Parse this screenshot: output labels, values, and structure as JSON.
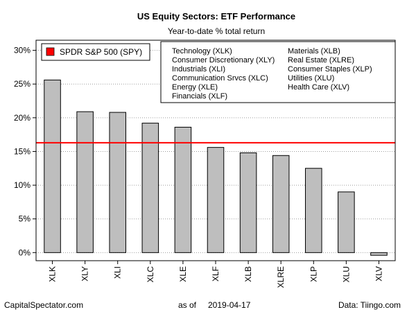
{
  "chart_data": {
    "type": "bar",
    "title": "US Equity Sectors: ETF Performance",
    "subtitle": "Year-to-date % total return",
    "categories": [
      "XLK",
      "XLY",
      "XLI",
      "XLC",
      "XLE",
      "XLF",
      "XLB",
      "XLRE",
      "XLP",
      "XLU",
      "XLV"
    ],
    "values": [
      25.6,
      20.9,
      20.8,
      19.2,
      18.6,
      15.6,
      14.8,
      14.4,
      12.5,
      9.0,
      -0.4
    ],
    "ylim": [
      -1.2,
      31.5
    ],
    "yticks": [
      0,
      5,
      10,
      15,
      20,
      25,
      30
    ],
    "ytick_labels": [
      "0%",
      "5%",
      "10%",
      "15%",
      "20%",
      "25%",
      "30%"
    ],
    "reference_line": {
      "label": "SPDR S&P 500 (SPY)",
      "value": 16.3,
      "color": "#ff0000"
    },
    "bar_color": "#bebebe",
    "legend_placement": "top-left",
    "sector_key": [
      "Technology (XLK)",
      "Consumer Discretionary (XLY)",
      "Industrials (XLI)",
      "Communication Srvcs (XLC)",
      "Energy (XLE)",
      "Financials (XLF)",
      "Materials (XLB)",
      "Real Estate (XLRE)",
      "Consumer Staples (XLP)",
      "Utilities (XLU)",
      "Health Care (XLV)"
    ],
    "grid": true
  },
  "footer": {
    "source_left": "CapitalSpectator.com",
    "as_of_label": "as of",
    "as_of_date": "2019-04-17",
    "source_right": "Data: Tiingo.com"
  }
}
